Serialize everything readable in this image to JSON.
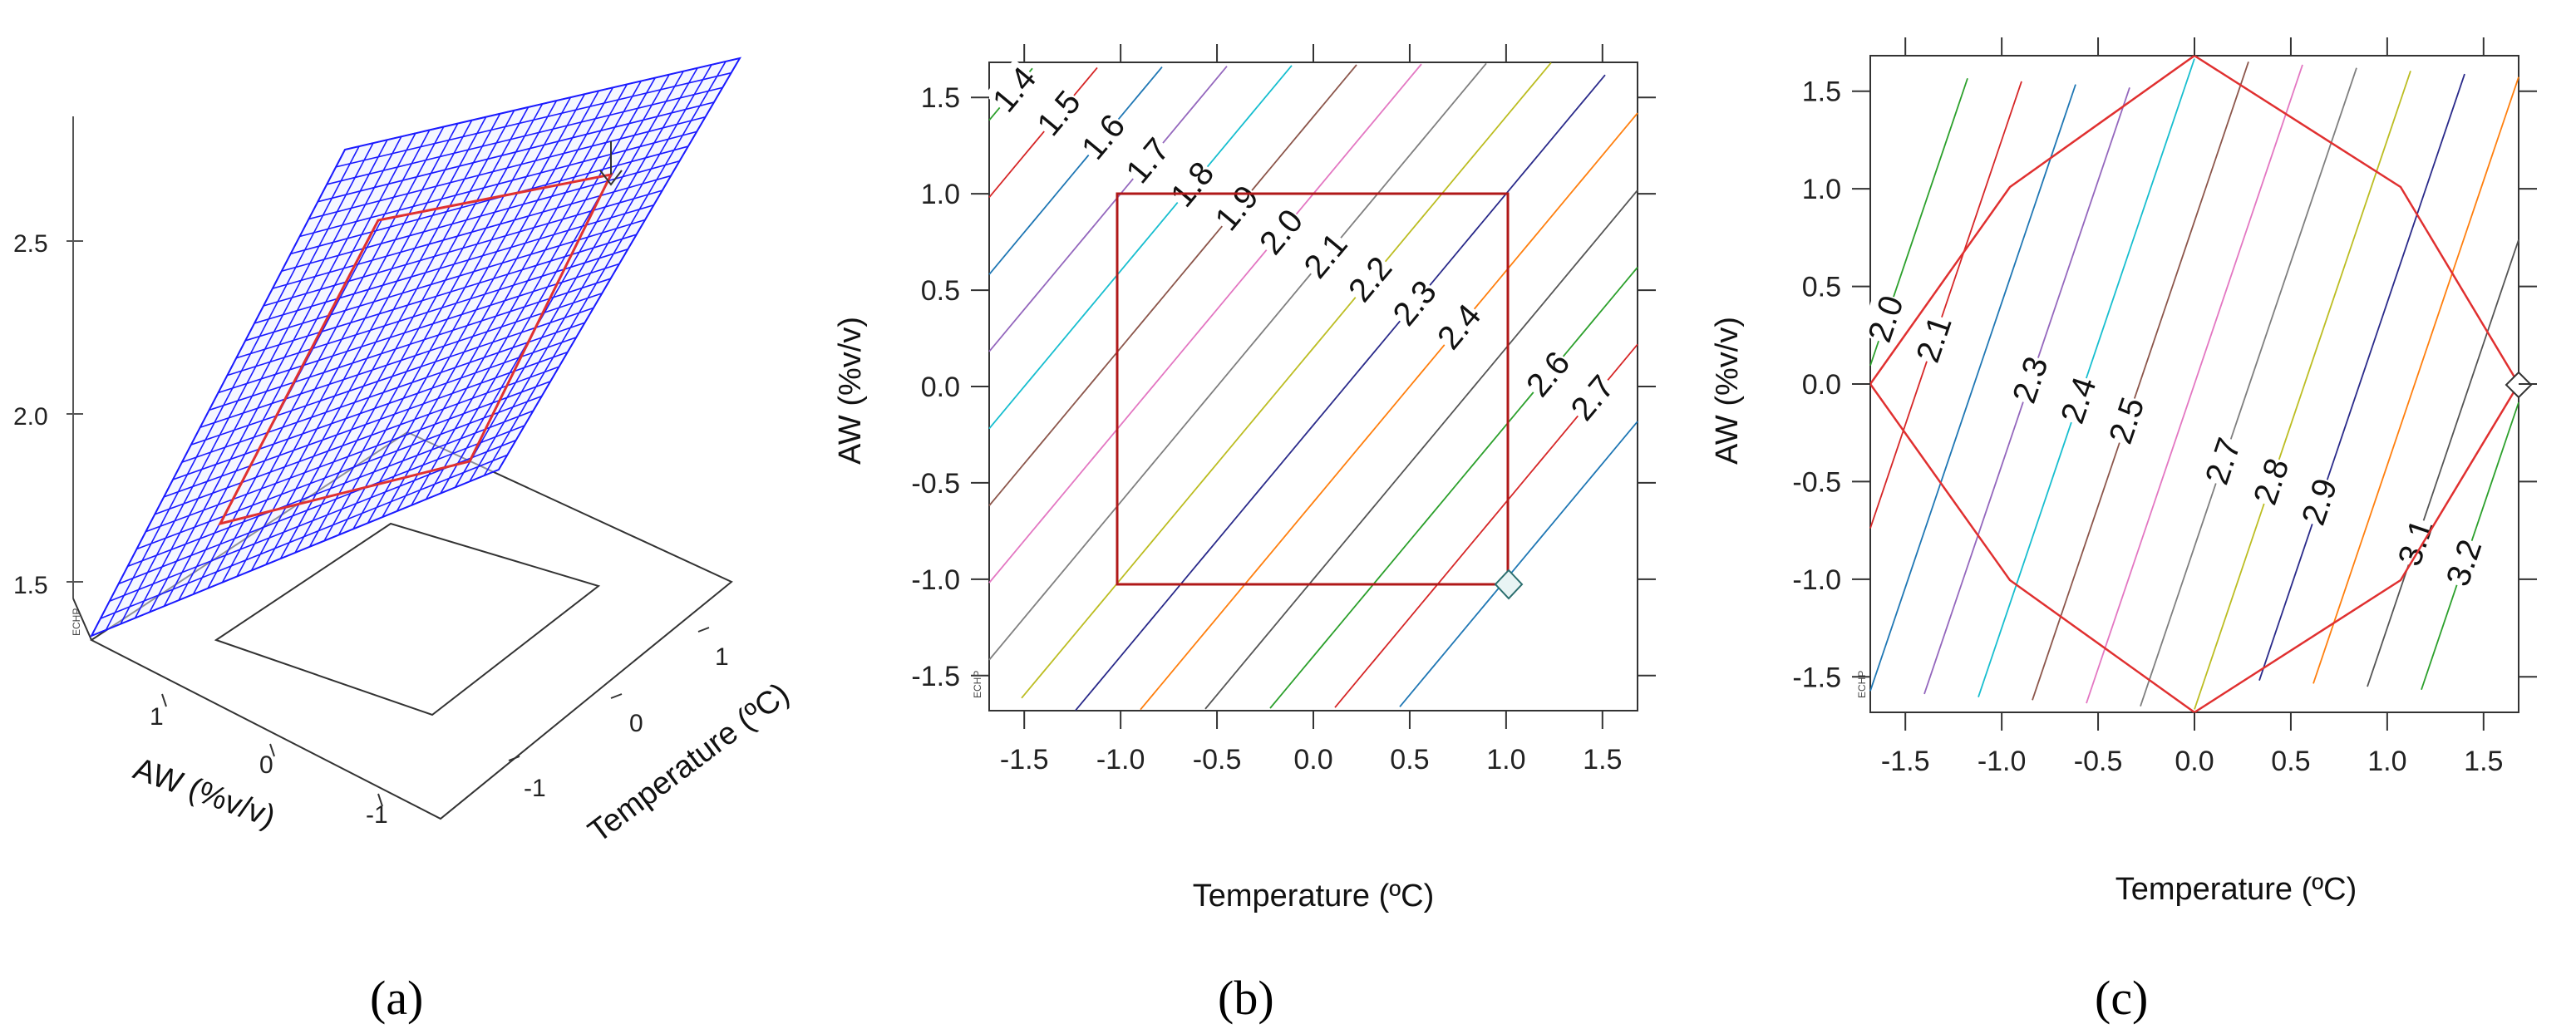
{
  "figure": {
    "panel_labels": [
      "(a)",
      "(b)",
      "(c)"
    ],
    "response_tag": "ECHP"
  },
  "chart_data": [
    {
      "type": "surface",
      "panel": "(a)",
      "xlabel": "AW (%v/v)",
      "ylabel": "Temperature (ºC)",
      "z_ticks": [
        "1.5",
        "2.0",
        "2.5"
      ],
      "x_ticks": [
        "1",
        "0",
        "-1"
      ],
      "y_ticks": [
        "-1",
        "0",
        "1"
      ],
      "response_label": "ECHP",
      "surface_color": "#1a1aff",
      "region_color": "#e03030"
    },
    {
      "type": "contour",
      "panel": "(b)",
      "xlabel": "Temperature (ºC)",
      "ylabel": "AW (%v/v)",
      "xlim": [
        -1.682,
        1.682
      ],
      "ylim": [
        -1.682,
        1.682
      ],
      "x_ticks": [
        "-1.5",
        "-1.0",
        "-0.5",
        "0.0",
        "0.5",
        "1.0",
        "1.5"
      ],
      "y_ticks": [
        "1.5",
        "1.0",
        "0.5",
        "0.0",
        "-0.5",
        "-1.0",
        "-1.5"
      ],
      "model": {
        "intercept": 2.25,
        "x_coef": 0.3,
        "y_coef": -0.25
      },
      "levels": [
        1.4,
        1.5,
        1.6,
        1.7,
        1.8,
        1.9,
        2.0,
        2.1,
        2.2,
        2.3,
        2.4,
        2.5,
        2.6,
        2.7,
        2.8
      ],
      "labeled_levels": [
        "1.4",
        "1.5",
        "1.6",
        "1.7",
        "1.8",
        "1.9",
        "2.0",
        "2.1",
        "2.2",
        "2.3",
        "2.4",
        "2.6",
        "2.7"
      ],
      "region": "square",
      "design_point": {
        "x": 1.0,
        "y": -1.0
      },
      "response_label": "ECHP"
    },
    {
      "type": "contour",
      "panel": "(c)",
      "xlabel": "Temperature (ºC)",
      "ylabel": "AW (%v/v)",
      "xlim": [
        -1.682,
        1.682
      ],
      "ylim": [
        -1.682,
        1.682
      ],
      "x_ticks": [
        "-1.5",
        "-1.0",
        "-0.5",
        "0.0",
        "0.5",
        "1.0",
        "1.5"
      ],
      "y_ticks": [
        "1.5",
        "1.0",
        "0.5",
        "0.0",
        "-0.5",
        "-1.0",
        "-1.5"
      ],
      "model": {
        "intercept": 2.6,
        "x_coef": 0.35,
        "y_coef": -0.12
      },
      "levels": [
        2.0,
        2.1,
        2.2,
        2.3,
        2.4,
        2.5,
        2.6,
        2.7,
        2.8,
        2.9,
        3.0,
        3.1,
        3.2
      ],
      "labeled_levels": [
        "2.0",
        "2.1",
        "2.3",
        "2.4",
        "2.5",
        "2.7",
        "2.8",
        "2.9",
        "3.1",
        "3.2"
      ],
      "region": "octagon",
      "design_point": {
        "x": 1.682,
        "y": 0.0
      },
      "response_label": "ECHP"
    }
  ]
}
